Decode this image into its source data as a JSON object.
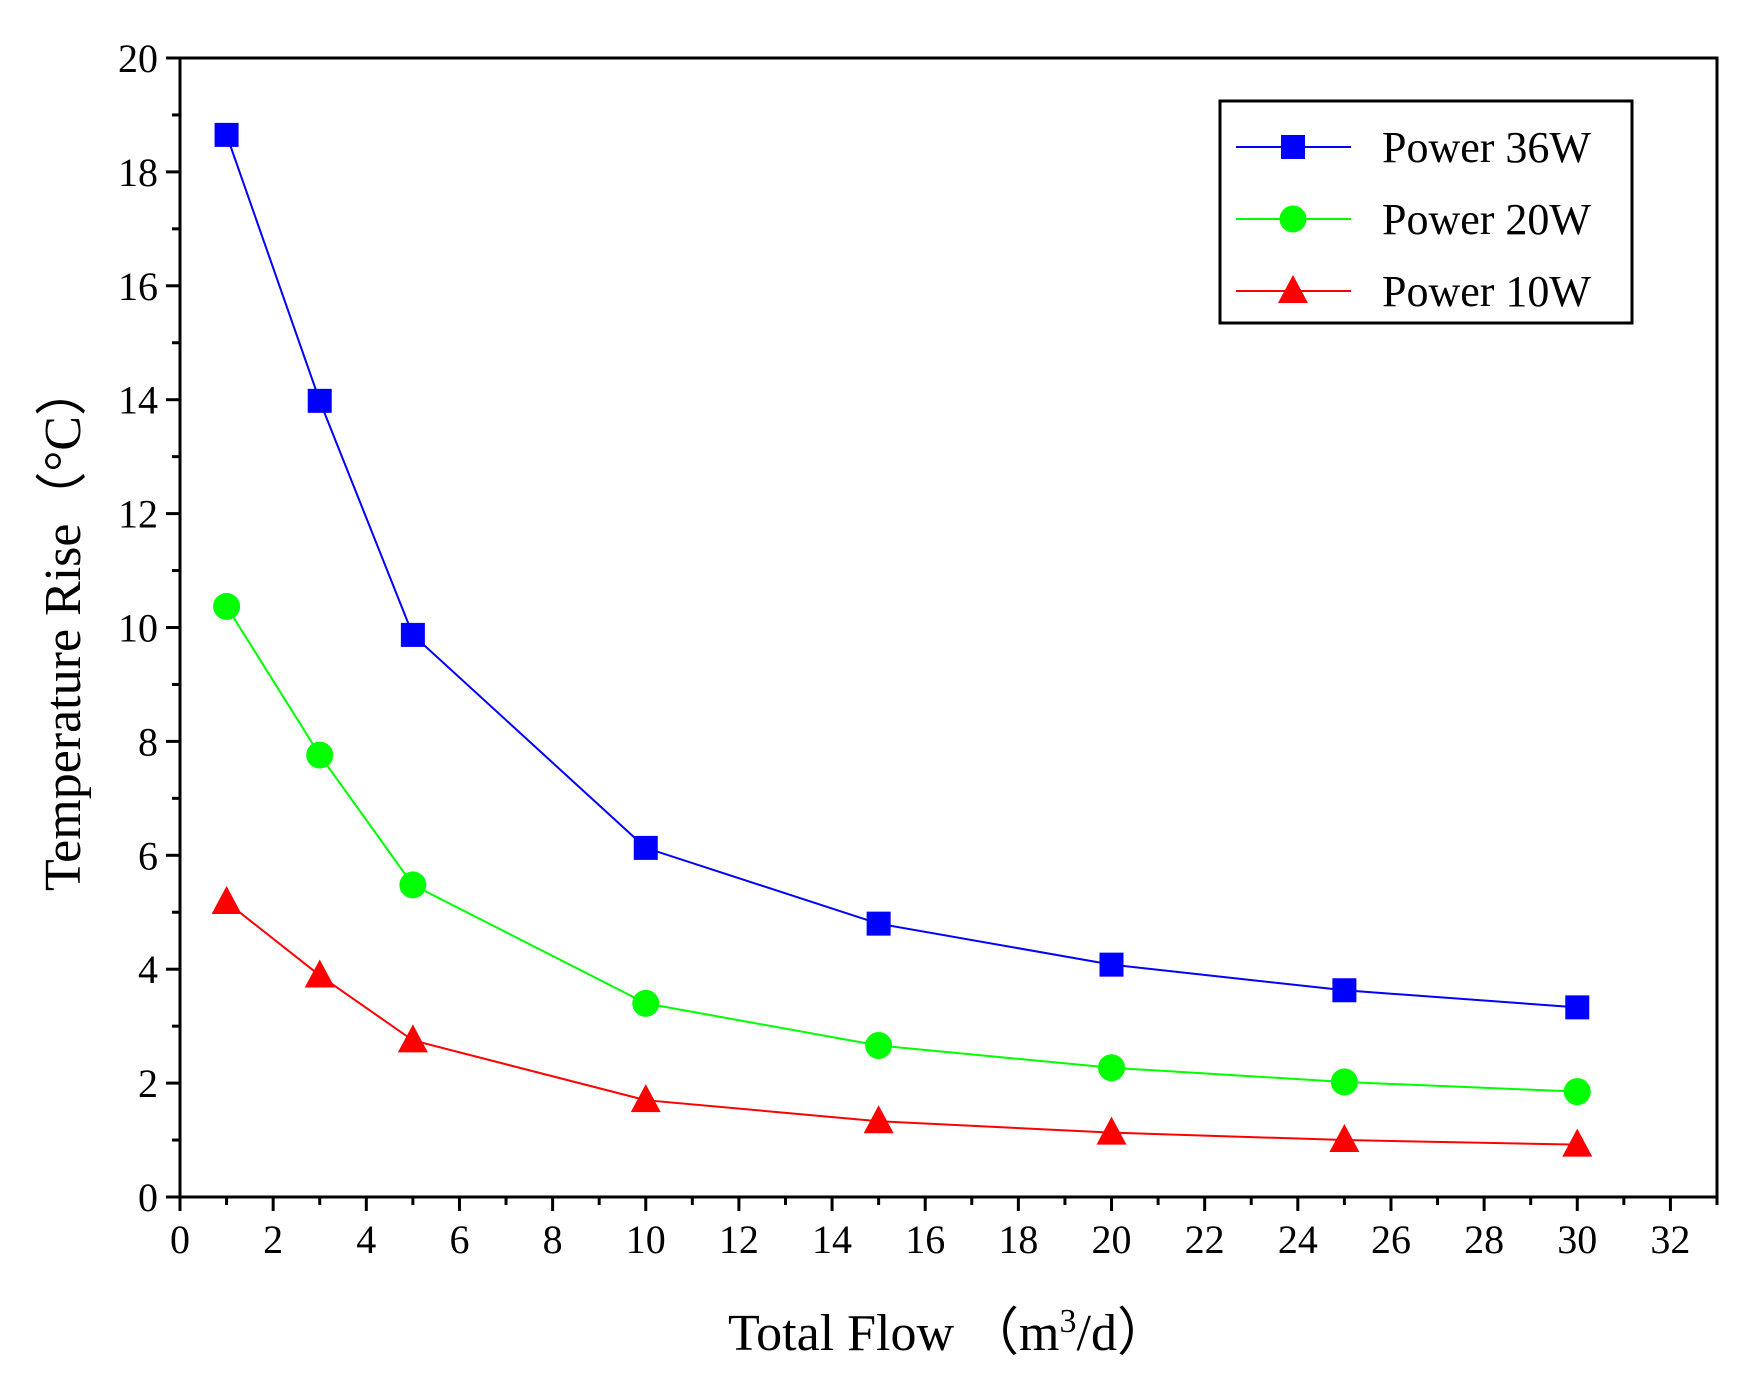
{
  "chart_data": {
    "type": "line",
    "title": "",
    "xlabel": "Total Flow （m³/d）",
    "xlabel_parts": {
      "main": "Total Flow （m",
      "sup": "3",
      "tail": "/d）"
    },
    "ylabel": "Temperature Rise（°C）",
    "xlim": [
      0,
      33
    ],
    "ylim": [
      0,
      20
    ],
    "xticks": [
      0,
      2,
      4,
      6,
      8,
      10,
      12,
      14,
      16,
      18,
      20,
      22,
      24,
      26,
      28,
      30,
      32
    ],
    "yticks": [
      0,
      2,
      4,
      6,
      8,
      10,
      12,
      14,
      16,
      18,
      20
    ],
    "legend_position": "top-right",
    "x": [
      1,
      3,
      5,
      10,
      15,
      20,
      25,
      30
    ],
    "series": [
      {
        "name": "Power 36W",
        "color": "#0000ff",
        "marker": "square",
        "values": [
          18.65,
          13.98,
          9.87,
          6.13,
          4.8,
          4.08,
          3.63,
          3.33
        ]
      },
      {
        "name": "Power 20W",
        "color": "#00ff00",
        "marker": "circle",
        "values": [
          10.37,
          7.76,
          5.48,
          3.4,
          2.66,
          2.27,
          2.02,
          1.85
        ]
      },
      {
        "name": "Power 10W",
        "color": "#ff0000",
        "marker": "triangle",
        "values": [
          5.18,
          3.89,
          2.75,
          1.7,
          1.33,
          1.13,
          1.0,
          0.92
        ]
      }
    ]
  }
}
